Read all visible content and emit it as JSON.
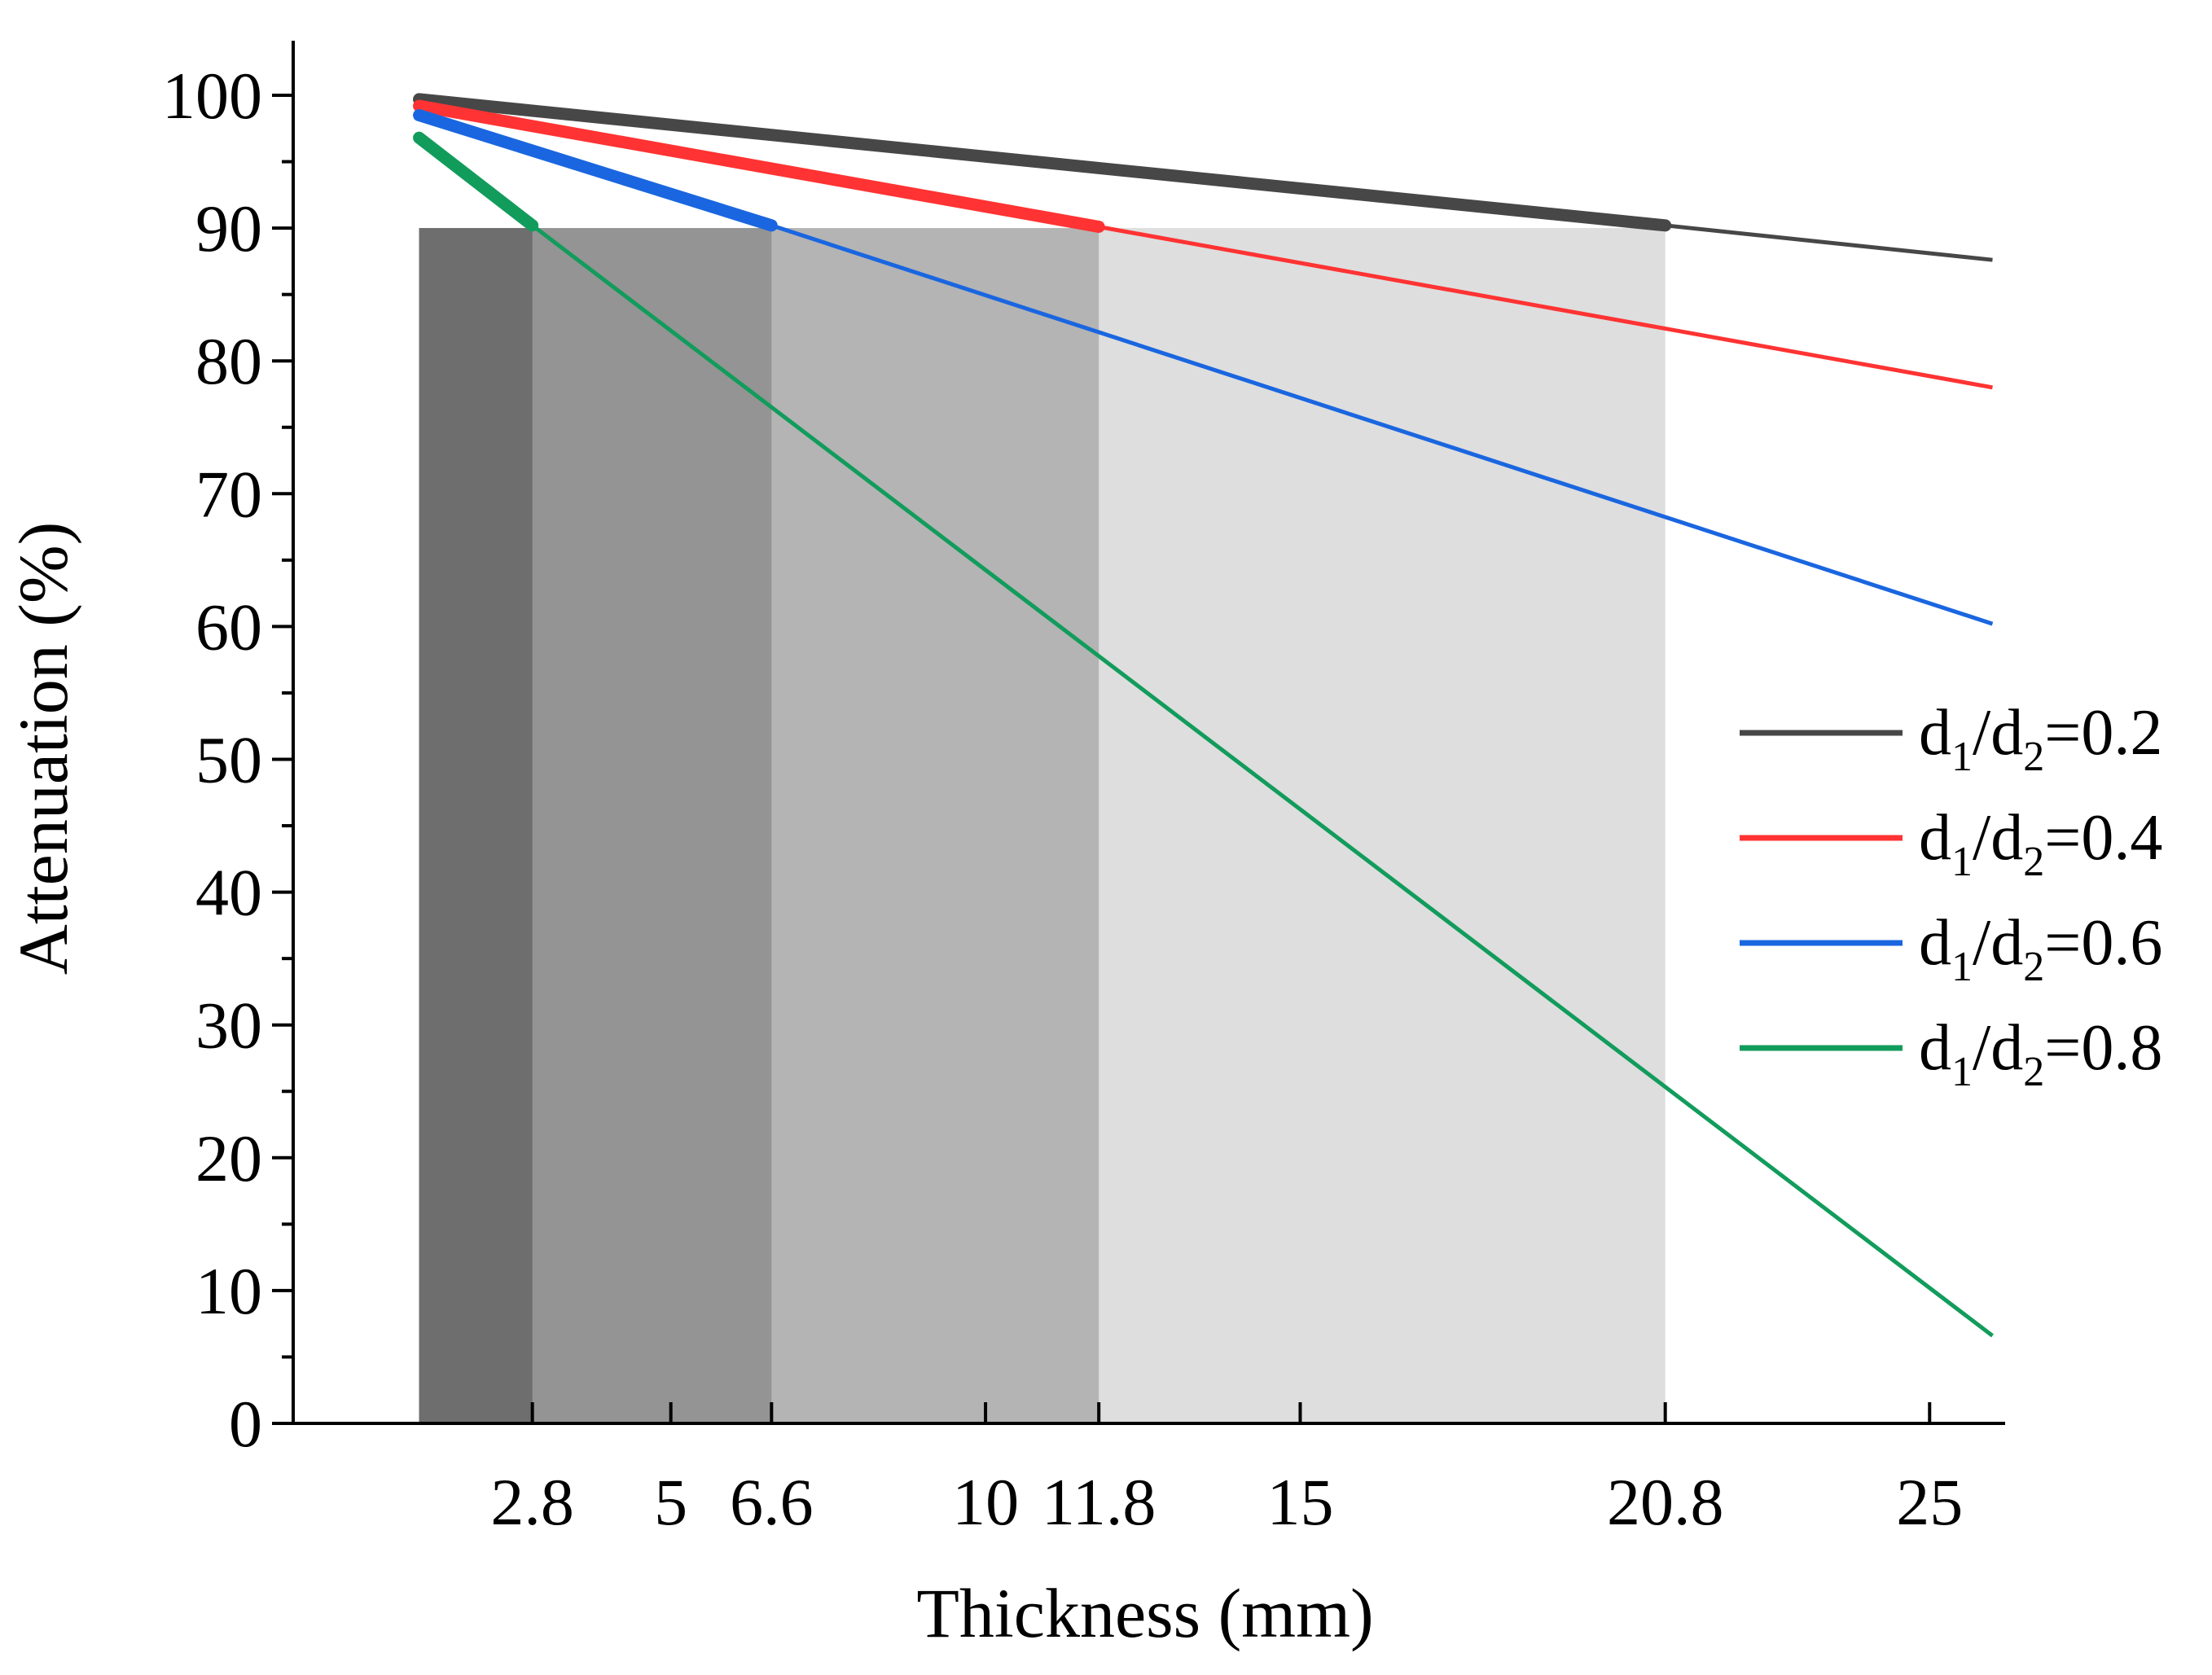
{
  "chart_data": {
    "type": "line",
    "title": "",
    "xlabel": "Thickness (mm)",
    "ylabel": "Attenuation (%)",
    "xlim": [
      -1,
      26.2
    ],
    "ylim": [
      0,
      104
    ],
    "x_ticks": [
      {
        "value": 2.8,
        "label": "2.8"
      },
      {
        "value": 5,
        "label": "5"
      },
      {
        "value": 6.6,
        "label": "6.6"
      },
      {
        "value": 10,
        "label": "10"
      },
      {
        "value": 11.8,
        "label": "11.8"
      },
      {
        "value": 15,
        "label": "15"
      },
      {
        "value": 20.8,
        "label": "20.8"
      },
      {
        "value": 25,
        "label": "25"
      }
    ],
    "y_ticks": [
      {
        "value": 0,
        "label": "0"
      },
      {
        "value": 10,
        "label": "10"
      },
      {
        "value": 20,
        "label": "20"
      },
      {
        "value": 30,
        "label": "30"
      },
      {
        "value": 40,
        "label": "40"
      },
      {
        "value": 50,
        "label": "50"
      },
      {
        "value": 60,
        "label": "60"
      },
      {
        "value": 70,
        "label": "70"
      },
      {
        "value": 80,
        "label": "80"
      },
      {
        "value": 90,
        "label": "90"
      },
      {
        "value": 100,
        "label": "100"
      }
    ],
    "y_minor_ticks": [
      5,
      15,
      25,
      35,
      45,
      55,
      65,
      75,
      85,
      95
    ],
    "grid": false,
    "legend_position": "right",
    "shaded_regions": [
      {
        "x_start": 1,
        "x_end": 20.8,
        "color": "#dedede"
      },
      {
        "x_start": 1,
        "x_end": 11.8,
        "color": "#b4b4b4"
      },
      {
        "x_start": 1,
        "x_end": 6.6,
        "color": "#949494"
      },
      {
        "x_start": 1,
        "x_end": 2.8,
        "color": "#6e6e6e"
      }
    ],
    "series": [
      {
        "name": "d1/d2=0.2",
        "label_main": "d",
        "label_sub1": "1",
        "label_mid": "/d",
        "label_sub2": "2",
        "label_tail": "=0.2",
        "color": "#474747",
        "x": [
          1,
          20.8,
          26.0
        ],
        "y": [
          99.7,
          90.2,
          87.6
        ],
        "highlight_until": 20.8
      },
      {
        "name": "d1/d2=0.4",
        "label_main": "d",
        "label_sub1": "1",
        "label_mid": "/d",
        "label_sub2": "2",
        "label_tail": "=0.4",
        "color": "#ff3333",
        "x": [
          1,
          11.8,
          26.0
        ],
        "y": [
          99.2,
          90.1,
          78.0
        ],
        "highlight_until": 11.8
      },
      {
        "name": "d1/d2=0.6",
        "label_main": "d",
        "label_sub1": "1",
        "label_mid": "/d",
        "label_sub2": "2",
        "label_tail": "=0.6",
        "color": "#1a66e0",
        "x": [
          1,
          6.6,
          26.0
        ],
        "y": [
          98.5,
          90.2,
          60.2
        ],
        "highlight_until": 6.6
      },
      {
        "name": "d1/d2=0.8",
        "label_main": "d",
        "label_sub1": "1",
        "label_mid": "/d",
        "label_sub2": "2",
        "label_tail": "=0.8",
        "color": "#129c5c",
        "x": [
          1,
          2.8,
          26.0
        ],
        "y": [
          96.8,
          90.2,
          6.6
        ],
        "highlight_until": 2.8
      }
    ]
  }
}
